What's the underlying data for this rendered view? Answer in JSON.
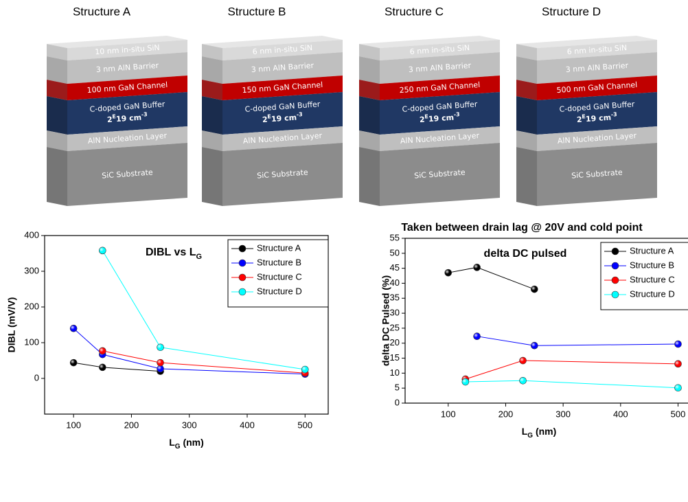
{
  "structures": [
    {
      "title": "Structure A",
      "layers": [
        "10 nm in-situ SiN",
        "3 nm AlN Barrier",
        "100 nm GaN Channel",
        "C-doped GaN Buffer",
        "AlN Nucleation Layer",
        "SiC Substrate"
      ],
      "doping": {
        "base": "2",
        "exp": "E",
        "value": "19 cm",
        "unit_exp": "-3"
      }
    },
    {
      "title": "Structure B",
      "layers": [
        "6 nm in-situ SiN",
        "3 nm AlN Barrier",
        "150 nm GaN Channel",
        "C-doped GaN Buffer",
        "AlN Nucleation Layer",
        "SiC Substrate"
      ],
      "doping": {
        "base": "2",
        "exp": "E",
        "value": "19 cm",
        "unit_exp": "-3"
      }
    },
    {
      "title": "Structure C",
      "layers": [
        "6 nm in-situ SiN",
        "3 nm AlN Barrier",
        "250 nm GaN Channel",
        "C-doped GaN Buffer",
        "AlN Nucleation Layer",
        "SiC Substrate"
      ],
      "doping": {
        "base": "2",
        "exp": "E",
        "value": "19 cm",
        "unit_exp": "-3"
      }
    },
    {
      "title": "Structure D",
      "layers": [
        "6 nm in-situ SiN",
        "3 nm AlN Barrier",
        "500 nm GaN Channel",
        "C-doped GaN Buffer",
        "AlN Nucleation Layer",
        "SiC Substrate"
      ],
      "doping": {
        "base": "2",
        "exp": "E",
        "value": "19 cm",
        "unit_exp": "-3"
      }
    }
  ],
  "chart_data": [
    {
      "type": "line",
      "title": "DIBL vs L",
      "title_sub": "G",
      "x_label": "L",
      "x_label_sub": "G",
      "x_label_unit": " (nm)",
      "y_label": "DIBL (mV/V)",
      "xlim": [
        50,
        540
      ],
      "xticks": [
        100,
        200,
        300,
        400,
        500
      ],
      "ylim": [
        -100,
        400
      ],
      "yticks": [
        0,
        100,
        200,
        300,
        400
      ],
      "legend": "upper right",
      "markers": true,
      "x": [
        100,
        150,
        250,
        500
      ],
      "series": [
        {
          "name": "Structure A",
          "color": "#000000",
          "values": [
            44,
            31,
            20,
            null
          ]
        },
        {
          "name": "Structure B",
          "color": "#0000ff",
          "values": [
            140,
            67,
            27,
            12
          ]
        },
        {
          "name": "Structure C",
          "color": "#ff0000",
          "values": [
            null,
            77,
            44,
            15
          ]
        },
        {
          "name": "Structure D",
          "color": "#00ffff",
          "values": [
            null,
            358,
            87,
            25
          ]
        }
      ]
    },
    {
      "type": "line",
      "heading": "Taken between drain lag @ 20V and cold point",
      "title": "delta DC pulsed",
      "x_label": "L",
      "x_label_sub": "G",
      "x_label_unit": " (nm)",
      "y_label": "delta DC Pulsed (%)",
      "xlim": [
        25,
        540
      ],
      "xticks": [
        100,
        200,
        300,
        400,
        500
      ],
      "ylim": [
        0,
        55
      ],
      "yticks": [
        0,
        5,
        10,
        15,
        20,
        25,
        30,
        35,
        40,
        45,
        50,
        55
      ],
      "legend": "upper right",
      "markers": true,
      "series": [
        {
          "name": "Structure A",
          "color": "#000000",
          "x": [
            100,
            150,
            250
          ],
          "values": [
            43.5,
            45.3,
            38
          ]
        },
        {
          "name": "Structure B",
          "color": "#0000ff",
          "x": [
            150,
            250,
            500
          ],
          "values": [
            22.3,
            19.2,
            19.7
          ]
        },
        {
          "name": "Structure C",
          "color": "#ff0000",
          "x": [
            130,
            230,
            500
          ],
          "values": [
            8,
            14.2,
            13.1
          ]
        },
        {
          "name": "Structure D",
          "color": "#00ffff",
          "x": [
            130,
            230,
            500
          ],
          "values": [
            7.1,
            7.5,
            5.1
          ]
        }
      ]
    }
  ]
}
